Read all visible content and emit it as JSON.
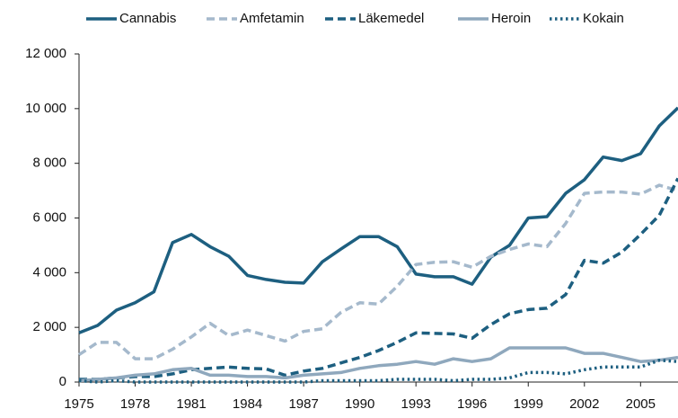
{
  "chart_data": {
    "type": "line",
    "x": [
      1975,
      1976,
      1977,
      1978,
      1979,
      1980,
      1981,
      1982,
      1983,
      1984,
      1985,
      1986,
      1987,
      1988,
      1989,
      1990,
      1991,
      1992,
      1993,
      1994,
      1995,
      1996,
      1997,
      1998,
      1999,
      2000,
      2001,
      2002,
      2003,
      2004,
      2005,
      2006,
      2007
    ],
    "xlim": [
      1975,
      2007
    ],
    "xticks": [
      1975,
      1978,
      1981,
      1984,
      1987,
      1990,
      1993,
      1996,
      1999,
      2002,
      2005
    ],
    "ylim": [
      0,
      12000
    ],
    "yticks": [
      0,
      {
        "value": 2000,
        "label": "2 000"
      },
      {
        "value": 4000,
        "label": "4 000"
      },
      {
        "value": 6000,
        "label": "6 000"
      },
      {
        "value": 8000,
        "label": "8 000"
      },
      {
        "value": 10000,
        "label": "10 000"
      },
      {
        "value": 12000,
        "label": "12 000"
      }
    ],
    "grid": false,
    "legend": "top",
    "series": [
      {
        "name": "Cannabis",
        "color": "#1d5f80",
        "dash": "solid",
        "values": [
          1800,
          2070,
          2630,
          2900,
          3300,
          5100,
          5400,
          4950,
          4600,
          3900,
          3750,
          3650,
          3620,
          4400,
          4870,
          5320,
          5320,
          4950,
          3950,
          3850,
          3850,
          3580,
          4570,
          5000,
          6000,
          6050,
          6900,
          7400,
          8230,
          8100,
          8350,
          9370,
          10030
        ]
      },
      {
        "name": "Amfetamin",
        "color": "#a5b9cc",
        "dash": "dashed",
        "values": [
          1000,
          1450,
          1450,
          850,
          850,
          1200,
          1650,
          2150,
          1700,
          1900,
          1700,
          1500,
          1850,
          1950,
          2550,
          2900,
          2850,
          3500,
          4300,
          4380,
          4400,
          4200,
          4600,
          4850,
          5050,
          4950,
          5800,
          6900,
          6950,
          6950,
          6870,
          7200,
          7000
        ]
      },
      {
        "name": "Läkemedel",
        "color": "#1d5f80",
        "dash": "dashed",
        "values": [
          100,
          100,
          150,
          200,
          200,
          300,
          450,
          500,
          550,
          500,
          480,
          250,
          400,
          500,
          700,
          900,
          1150,
          1450,
          1800,
          1780,
          1760,
          1600,
          2100,
          2500,
          2650,
          2700,
          3200,
          4450,
          4350,
          4750,
          5400,
          6100,
          7450
        ]
      },
      {
        "name": "Heroin",
        "color": "#8fa8bd",
        "dash": "solid",
        "values": [
          50,
          100,
          150,
          250,
          300,
          450,
          500,
          250,
          250,
          200,
          200,
          150,
          250,
          300,
          350,
          500,
          600,
          650,
          750,
          650,
          850,
          750,
          850,
          1250,
          1250,
          1250,
          1250,
          1050,
          1050,
          900,
          750,
          800,
          900
        ]
      },
      {
        "name": "Kokain",
        "color": "#1d5f80",
        "dash": "dotted",
        "values": [
          50,
          0,
          50,
          0,
          0,
          0,
          0,
          0,
          0,
          0,
          0,
          0,
          0,
          50,
          50,
          50,
          50,
          100,
          100,
          100,
          50,
          100,
          100,
          150,
          350,
          350,
          300,
          450,
          550,
          550,
          550,
          800,
          750
        ]
      }
    ]
  }
}
